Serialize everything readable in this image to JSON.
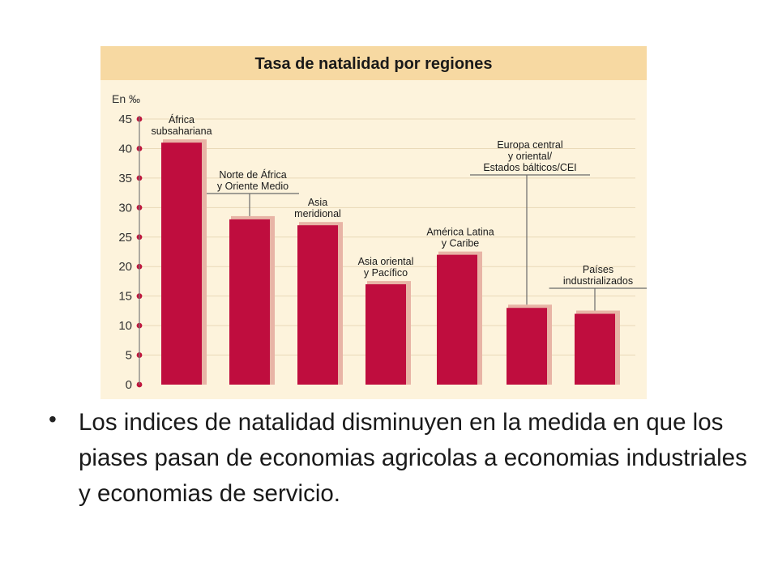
{
  "chart_data": {
    "type": "bar",
    "title": "Tasa de natalidad por regiones",
    "ylabel": "En ‰",
    "ylim": [
      0,
      45
    ],
    "yticks": [
      0,
      5,
      10,
      15,
      20,
      25,
      30,
      35,
      40,
      45
    ],
    "grid": true,
    "categories": [
      [
        "África",
        "subsahariana"
      ],
      [
        "Norte de África",
        "y Oriente Medio"
      ],
      [
        "Asia",
        "meridional"
      ],
      [
        "Asia oriental",
        "y Pacífico"
      ],
      [
        "América Latina",
        "y Caribe"
      ],
      [
        "Europa central",
        "y oriental/",
        "Estados bálticos/CEI"
      ],
      [
        "Países",
        "industrializados"
      ]
    ],
    "values": [
      41,
      28,
      27,
      17,
      22,
      13,
      12
    ],
    "colors": {
      "bar": "#bf0d3e",
      "shadow": "#e8b4a6",
      "band": "#f7d9a2",
      "panel": "#fdf3dc"
    }
  },
  "bullet": {
    "text": "Los indices de natalidad disminuyen en la medida en que los piases pasan de economias agricolas a economias industriales y economias de servicio."
  }
}
